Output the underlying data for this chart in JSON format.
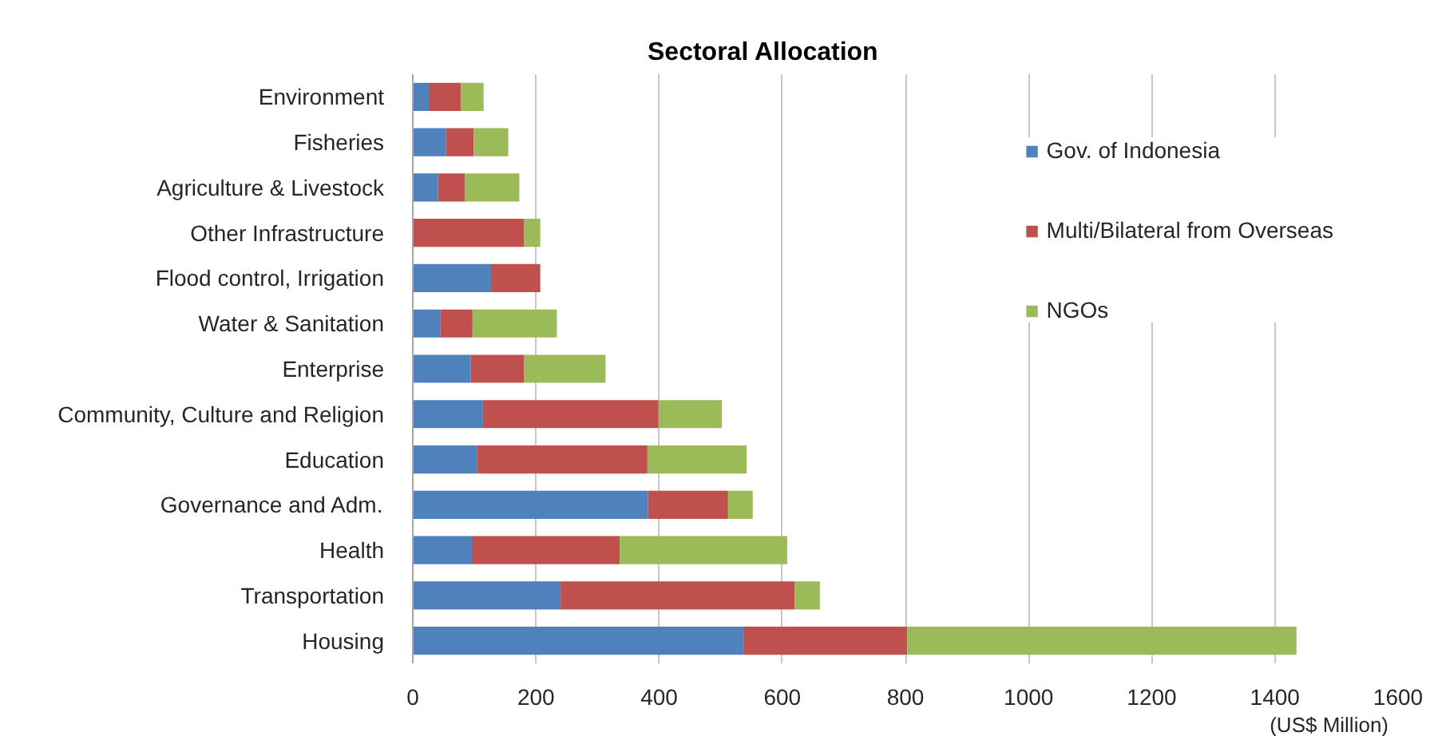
{
  "chart_data": {
    "type": "bar",
    "orientation": "horizontal",
    "stacked": true,
    "title": "Sectoral Allocation",
    "xlabel": "(US$ Million)",
    "categories": [
      "Environment",
      "Fisheries",
      "Agriculture & Livestock",
      "Other Infrastructure",
      "Flood control, Irrigation",
      "Water & Sanitation",
      "Enterprise",
      "Community, Culture and Religion",
      "Education",
      "Governance and Adm.",
      "Health",
      "Transportation",
      "Housing"
    ],
    "series": [
      {
        "name": "Gov. of Indonesia",
        "color": "#4f81bd",
        "values": [
          26,
          54,
          41,
          0,
          127,
          45,
          94,
          114,
          104,
          382,
          96,
          240,
          537
        ]
      },
      {
        "name": "Multi/Bilateral from Overseas",
        "color": "#c0504d",
        "values": [
          52,
          45,
          44,
          181,
          80,
          52,
          87,
          285,
          277,
          130,
          240,
          380,
          266
        ]
      },
      {
        "name": "NGOs",
        "color": "#9bbb59",
        "values": [
          37,
          56,
          88,
          26,
          0,
          137,
          132,
          103,
          161,
          40,
          272,
          41,
          632
        ]
      }
    ],
    "xlim": [
      0,
      1600
    ],
    "xticks": [
      0,
      200,
      400,
      600,
      800,
      1000,
      1200,
      1400,
      1600
    ],
    "grid": "x",
    "legend": "top right"
  }
}
